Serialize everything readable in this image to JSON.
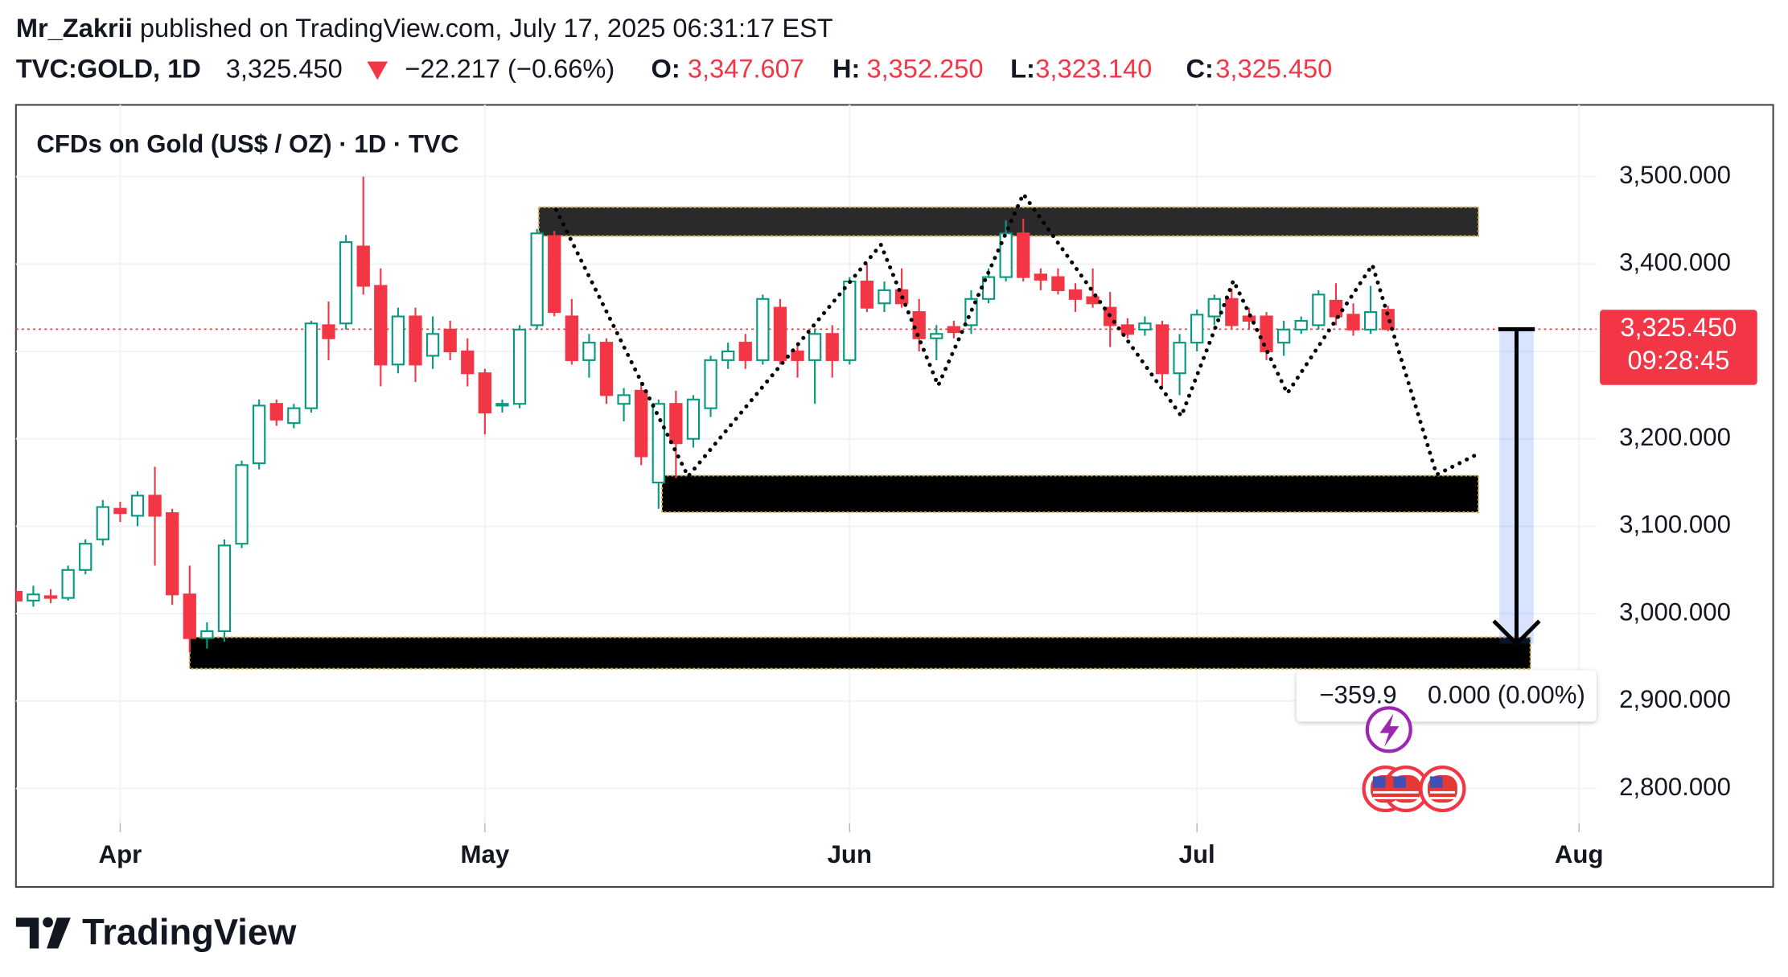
{
  "header": {
    "publisher": "Mr_Zakrii",
    "published": "published on TradingView.com, July 17, 2025 06:31:17 EST",
    "symbol": "TVC:GOLD, 1D",
    "price": "3,325.450",
    "change": "−22.217 (−0.66%)",
    "ohlc": [
      {
        "key": "O:",
        "value": "3,347.607"
      },
      {
        "key": "H:",
        "value": "3,352.250"
      },
      {
        "key": "L:",
        "value": "3,323.140"
      },
      {
        "key": "C:",
        "value": "3,325.450"
      }
    ]
  },
  "chart_data": {
    "type": "candlestick",
    "title": "CFDs on Gold (US$ / OZ) · 1D · TVC",
    "up_color": "#089981",
    "down_color": "#f23645",
    "open": [
      3025,
      3015,
      3020,
      3018,
      3050,
      3085,
      3120,
      3112,
      3135,
      3115,
      3022,
      2972,
      2980,
      3080,
      3172,
      3240,
      3218,
      3235,
      3330,
      3332,
      3420,
      3375,
      3285,
      3340,
      3295,
      3325,
      3300,
      3275,
      3238,
      3240,
      3330,
      3432,
      3340,
      3290,
      3310,
      3240,
      3255,
      3150,
      3240,
      3200,
      3235,
      3290,
      3310,
      3290,
      3350,
      3300,
      3290,
      3320,
      3290,
      3380,
      3355,
      3370,
      3345,
      3315,
      3328,
      3330,
      3360,
      3385,
      3435,
      3388,
      3385,
      3370,
      3362,
      3350,
      3330,
      3325,
      3330,
      3275,
      3310,
      3340,
      3360,
      3340,
      3340,
      3310,
      3325,
      3330,
      3358,
      3342,
      3325,
      3347.607
    ],
    "high": [
      3030,
      3032,
      3028,
      3055,
      3085,
      3130,
      3128,
      3140,
      3168,
      3120,
      3055,
      2990,
      3085,
      3175,
      3245,
      3245,
      3240,
      3335,
      3357,
      3433,
      3500,
      3395,
      3350,
      3350,
      3340,
      3335,
      3315,
      3280,
      3245,
      3330,
      3440,
      3438,
      3360,
      3320,
      3315,
      3258,
      3265,
      3245,
      3255,
      3250,
      3295,
      3310,
      3320,
      3365,
      3360,
      3310,
      3325,
      3330,
      3385,
      3400,
      3380,
      3395,
      3360,
      3330,
      3335,
      3370,
      3395,
      3450,
      3452,
      3395,
      3395,
      3378,
      3395,
      3368,
      3338,
      3340,
      3335,
      3320,
      3348,
      3365,
      3372,
      3350,
      3345,
      3335,
      3340,
      3370,
      3378,
      3355,
      3375,
      3352.25
    ],
    "low": [
      3010,
      3008,
      3012,
      3015,
      3045,
      3078,
      3105,
      3100,
      3055,
      3010,
      2956,
      2960,
      2968,
      3075,
      3165,
      3215,
      3212,
      3230,
      3290,
      3325,
      3365,
      3260,
      3275,
      3265,
      3280,
      3290,
      3260,
      3205,
      3230,
      3235,
      3325,
      3340,
      3285,
      3270,
      3240,
      3220,
      3170,
      3120,
      3155,
      3190,
      3225,
      3280,
      3280,
      3285,
      3285,
      3270,
      3240,
      3270,
      3285,
      3345,
      3345,
      3350,
      3300,
      3290,
      3315,
      3320,
      3355,
      3380,
      3380,
      3370,
      3365,
      3345,
      3350,
      3305,
      3315,
      3318,
      3260,
      3250,
      3300,
      3330,
      3325,
      3325,
      3290,
      3295,
      3320,
      3325,
      3330,
      3318,
      3320,
      3323.14
    ],
    "close": [
      3015,
      3022,
      3018,
      3050,
      3080,
      3122,
      3115,
      3135,
      3112,
      3022,
      2972,
      2980,
      3078,
      3170,
      3238,
      3222,
      3235,
      3332,
      3315,
      3425,
      3375,
      3285,
      3340,
      3285,
      3320,
      3300,
      3275,
      3230,
      3240,
      3325,
      3435,
      3345,
      3290,
      3310,
      3250,
      3250,
      3180,
      3240,
      3195,
      3245,
      3290,
      3300,
      3290,
      3360,
      3290,
      3290,
      3320,
      3290,
      3380,
      3350,
      3370,
      3355,
      3315,
      3320,
      3322,
      3360,
      3385,
      3435,
      3385,
      3382,
      3370,
      3360,
      3355,
      3330,
      3320,
      3332,
      3275,
      3310,
      3342,
      3360,
      3330,
      3335,
      3300,
      3325,
      3335,
      3365,
      3340,
      3325,
      3345,
      3325.45
    ],
    "xlim": [
      0,
      91
    ],
    "xticks": [
      {
        "value": 6,
        "label": "Apr"
      },
      {
        "value": 27,
        "label": "May"
      },
      {
        "value": 48,
        "label": "Jun"
      },
      {
        "value": 68,
        "label": "Jul"
      },
      {
        "value": 90,
        "label": "Aug"
      }
    ],
    "ylim": [
      2750,
      3582
    ],
    "yticks": [
      {
        "value": 2800,
        "label": "2,800.000"
      },
      {
        "value": 2900,
        "label": "2,900.000"
      },
      {
        "value": 3000,
        "label": "3,000.000"
      },
      {
        "value": 3100,
        "label": "3,100.000"
      },
      {
        "value": 3200,
        "label": "3,200.000"
      },
      {
        "value": 3300,
        "label": "3,300.000"
      },
      {
        "value": 3400,
        "label": "3,400.000"
      },
      {
        "value": 3500,
        "label": "3,500.000"
      }
    ],
    "grid": true,
    "last_price": 3325.45,
    "last_price_label": "3,325.450",
    "countdown": "09:28:45",
    "zones": [
      {
        "start": 30.1,
        "end": 84.2,
        "top": 3465,
        "bottom": 3432,
        "color": "#2a2a2a"
      },
      {
        "start": 37.2,
        "end": 84.2,
        "top": 3158,
        "bottom": 3116,
        "color": "#000000"
      },
      {
        "start": 10,
        "end": 87.2,
        "top": 2973,
        "bottom": 2937,
        "color": "#000000"
      }
    ],
    "zigzag": {
      "x": [
        31.1,
        38.7,
        49.8,
        53.1,
        58.0,
        67.1,
        70.1,
        73.2,
        78.1,
        81.8,
        84.2
      ],
      "y": [
        3462,
        3157,
        3422,
        3261,
        3480,
        3226,
        3381,
        3252,
        3399,
        3159,
        3183
      ]
    },
    "measure": {
      "x": 86.4,
      "from": 3325.45,
      "to": 2965.55,
      "change_label": "−359.9",
      "bars_label": "0.000 (0.00%)"
    }
  },
  "footer": {
    "brand": "TradingView"
  }
}
